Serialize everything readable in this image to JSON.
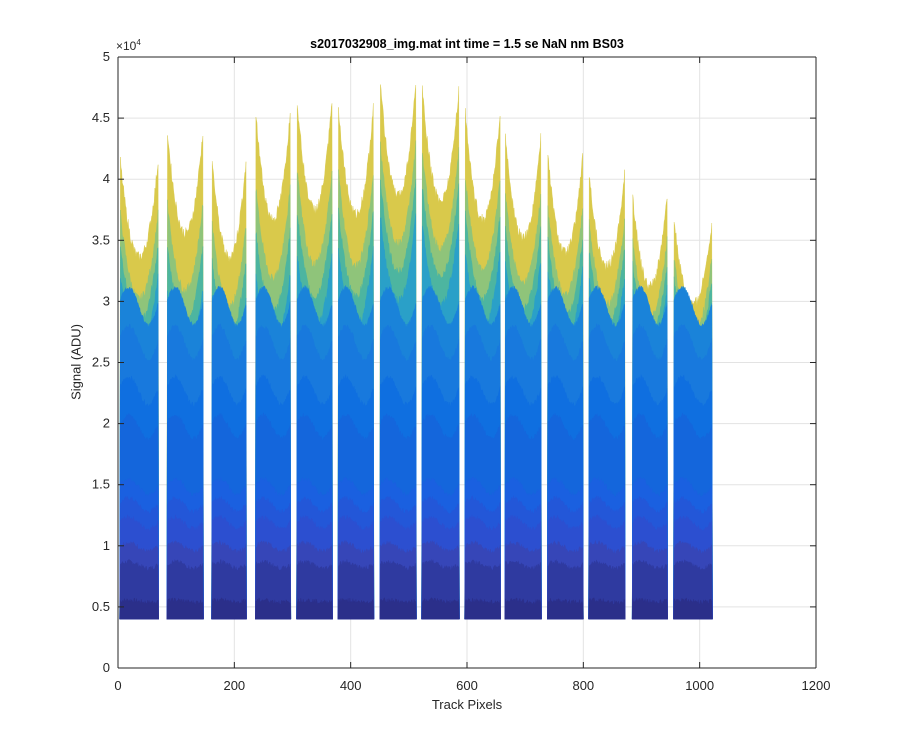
{
  "chart_data": {
    "type": "area",
    "title": "s2017032908_img.mat int time = 1.5 se  NaN nm BS03",
    "xlabel": "Track Pixels",
    "ylabel": "Signal (ADU)",
    "y_exponent_base": "×10",
    "y_exponent_power": "4",
    "xlim": [
      0,
      1200
    ],
    "ylim": [
      0,
      50000
    ],
    "xticks": [
      0,
      200,
      400,
      600,
      800,
      1000,
      1200
    ],
    "xtick_labels": [
      "0",
      "200",
      "400",
      "600",
      "800",
      "1000",
      "1200"
    ],
    "yticks": [
      0,
      5000,
      10000,
      15000,
      20000,
      25000,
      30000,
      35000,
      40000,
      45000,
      50000
    ],
    "ytick_labels": [
      "0",
      "0.5",
      "1",
      "1.5",
      "2",
      "2.5",
      "3",
      "3.5",
      "4",
      "4.5",
      "5"
    ],
    "grid": true,
    "baseline": 4000,
    "tracks": [
      {
        "x_start": 3,
        "x_end": 70,
        "peak_max": 42000,
        "mid_max": 30000
      },
      {
        "x_start": 84,
        "x_end": 147,
        "peak_max": 44500,
        "mid_max": 28000
      },
      {
        "x_start": 161,
        "x_end": 221,
        "peak_max": 42000,
        "mid_max": 27500
      },
      {
        "x_start": 236,
        "x_end": 297,
        "peak_max": 46000,
        "mid_max": 29000
      },
      {
        "x_start": 307,
        "x_end": 369,
        "peak_max": 47000,
        "mid_max": 31000
      },
      {
        "x_start": 378,
        "x_end": 440,
        "peak_max": 46500,
        "mid_max": 31500
      },
      {
        "x_start": 450,
        "x_end": 513,
        "peak_max": 48500,
        "mid_max": 34500
      },
      {
        "x_start": 522,
        "x_end": 587,
        "peak_max": 48000,
        "mid_max": 34000
      },
      {
        "x_start": 596,
        "x_end": 658,
        "peak_max": 46000,
        "mid_max": 31500
      },
      {
        "x_start": 665,
        "x_end": 728,
        "peak_max": 44000,
        "mid_max": 31000
      },
      {
        "x_start": 738,
        "x_end": 800,
        "peak_max": 42500,
        "mid_max": 30500
      },
      {
        "x_start": 809,
        "x_end": 872,
        "peak_max": 41000,
        "mid_max": 30000
      },
      {
        "x_start": 884,
        "x_end": 945,
        "peak_max": 39000,
        "mid_max": 29500
      },
      {
        "x_start": 955,
        "x_end": 1022,
        "peak_max": 37000,
        "mid_max": 28500
      }
    ],
    "layer_levels": [
      4000,
      5500,
      8500,
      10000,
      12000,
      13500,
      15000,
      20000,
      23000,
      27000,
      30000
    ],
    "layer_colors": [
      "#2b2f8a",
      "#2f3aa0",
      "#3646b8",
      "#2c4fd0",
      "#2357d8",
      "#1a60e0",
      "#1466dc",
      "#0f6fe0",
      "#1879dd",
      "#1a83d9",
      "#208cd4",
      "#2aa0c8",
      "#4db5a0",
      "#8fc47a",
      "#d9c94b"
    ]
  }
}
